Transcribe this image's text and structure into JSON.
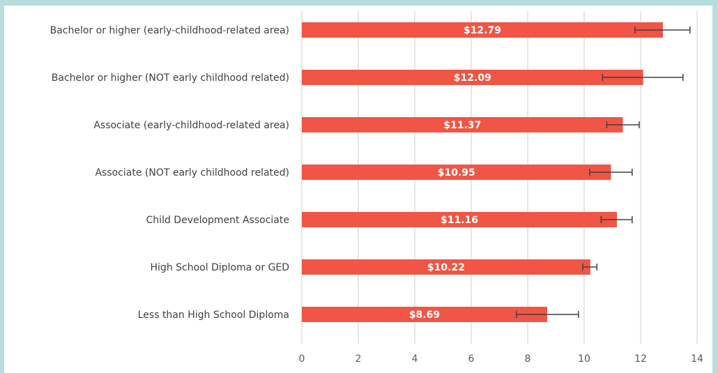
{
  "chart_data": {
    "type": "bar",
    "orientation": "horizontal",
    "title": "",
    "xlabel": "",
    "ylabel": "",
    "categories": [
      "Bachelor or higher (early-childhood-related area)",
      "Bachelor or higher (NOT early childhood related)",
      "Associate (early-childhood-related area)",
      "Associate (NOT early childhood related)",
      "Child Development Associate",
      "High School Diploma or GED",
      "Less than High School Diploma"
    ],
    "values": [
      12.79,
      12.09,
      11.37,
      10.95,
      11.16,
      10.22,
      8.69
    ],
    "data_labels": [
      "$12.79",
      "$12.09",
      "$11.37",
      "$10.95",
      "$11.16",
      "$10.22",
      "$8.69"
    ],
    "error_low": [
      11.8,
      10.65,
      10.8,
      10.2,
      10.6,
      9.95,
      7.6
    ],
    "error_high": [
      13.75,
      13.5,
      11.95,
      11.7,
      11.7,
      10.45,
      9.8
    ],
    "xlim": [
      0,
      14
    ],
    "x_ticks": [
      "0",
      "2",
      "4",
      "6",
      "8",
      "10",
      "12",
      "14"
    ],
    "grid": "vertical",
    "bar_color": "#f05545",
    "error_color": "#404040",
    "grid_color": "#d9d9d9"
  }
}
